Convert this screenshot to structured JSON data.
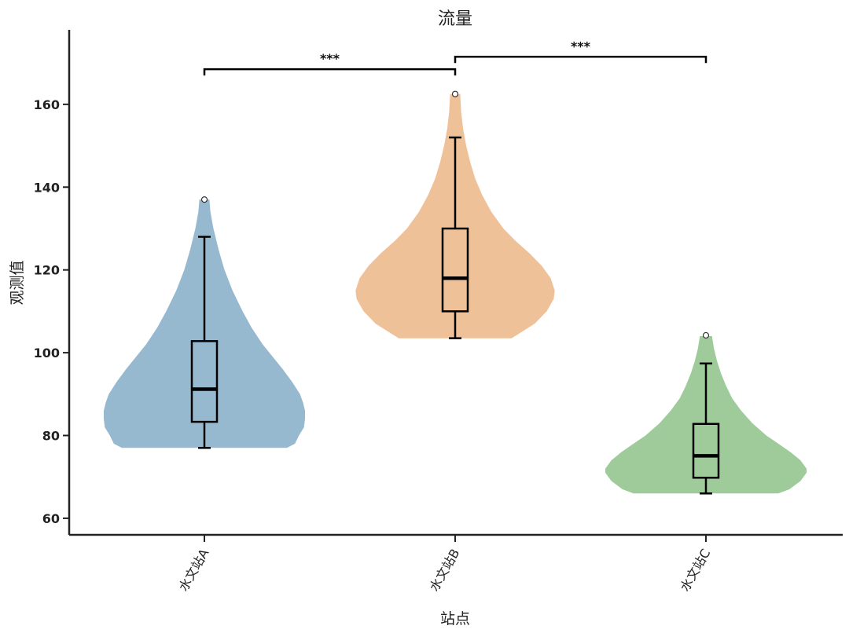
{
  "chart_data": {
    "type": "violin",
    "title": "流量",
    "xlabel": "站点",
    "ylabel": "观测值",
    "ylim": [
      56,
      178
    ],
    "yticks": [
      60,
      80,
      100,
      120,
      140,
      160
    ],
    "categories": [
      "水文站A",
      "水文站B",
      "水文站C"
    ],
    "colors": [
      "#97b9d0",
      "#efc199",
      "#9fcb9b"
    ],
    "grid": false,
    "series": [
      {
        "category": "水文站A",
        "min": 77,
        "max": 137,
        "box": {
          "whisker_low": 77,
          "q1": 83.3,
          "median": 91.2,
          "q3": 102.8,
          "whisker_high": 128
        },
        "outliers": [
          137
        ],
        "density": [
          [
            77,
            0.82
          ],
          [
            78,
            0.9
          ],
          [
            80,
            0.94
          ],
          [
            82,
            0.99
          ],
          [
            84,
            1.0
          ],
          [
            86,
            1.0
          ],
          [
            88,
            0.98
          ],
          [
            90,
            0.95
          ],
          [
            93,
            0.87
          ],
          [
            96,
            0.78
          ],
          [
            99,
            0.68
          ],
          [
            102,
            0.58
          ],
          [
            106,
            0.47
          ],
          [
            110,
            0.38
          ],
          [
            115,
            0.28
          ],
          [
            120,
            0.2
          ],
          [
            125,
            0.14
          ],
          [
            130,
            0.09
          ],
          [
            134,
            0.06
          ],
          [
            137,
            0.05
          ]
        ]
      },
      {
        "category": "水文站B",
        "min": 103.5,
        "max": 162.5,
        "box": {
          "whisker_low": 103.5,
          "q1": 110,
          "median": 118,
          "q3": 130,
          "whisker_high": 152
        },
        "outliers": [
          162.5
        ],
        "density": [
          [
            103.5,
            0.56
          ],
          [
            105,
            0.66
          ],
          [
            107,
            0.79
          ],
          [
            110,
            0.91
          ],
          [
            113,
            0.98
          ],
          [
            115,
            0.99
          ],
          [
            118,
            0.95
          ],
          [
            121,
            0.86
          ],
          [
            124,
            0.74
          ],
          [
            127,
            0.6
          ],
          [
            130,
            0.48
          ],
          [
            134,
            0.36
          ],
          [
            138,
            0.27
          ],
          [
            142,
            0.2
          ],
          [
            146,
            0.15
          ],
          [
            150,
            0.11
          ],
          [
            154,
            0.08
          ],
          [
            158,
            0.06
          ],
          [
            162.5,
            0.05
          ]
        ]
      },
      {
        "category": "水文站C",
        "min": 66,
        "max": 104,
        "box": {
          "whisker_low": 66,
          "q1": 69.8,
          "median": 75.1,
          "q3": 82.8,
          "whisker_high": 97.4
        },
        "outliers": [
          104.2
        ],
        "density": [
          [
            66,
            0.72
          ],
          [
            67,
            0.83
          ],
          [
            69,
            0.94
          ],
          [
            71,
            1.0
          ],
          [
            72,
            1.0
          ],
          [
            74,
            0.94
          ],
          [
            76,
            0.84
          ],
          [
            78,
            0.72
          ],
          [
            80,
            0.6
          ],
          [
            83,
            0.46
          ],
          [
            86,
            0.35
          ],
          [
            89,
            0.26
          ],
          [
            92,
            0.2
          ],
          [
            95,
            0.15
          ],
          [
            98,
            0.11
          ],
          [
            101,
            0.08
          ],
          [
            104,
            0.06
          ]
        ]
      }
    ],
    "significance": [
      {
        "from": "水文站A",
        "to": "水文站B",
        "label": "***",
        "y": 168.5
      },
      {
        "from": "水文站B",
        "to": "水文站C",
        "label": "***",
        "y": 171.5
      }
    ]
  }
}
